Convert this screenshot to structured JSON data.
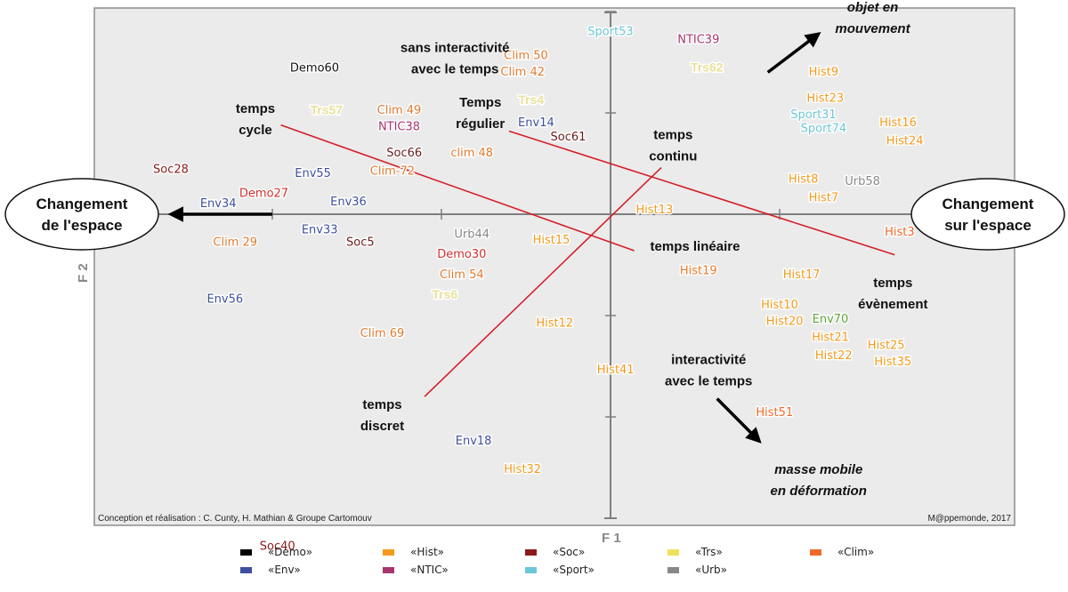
{
  "chart_data": {
    "type": "scatter",
    "title": "",
    "xlabel": "F 1",
    "ylabel": "F 2",
    "xlim": [
      -3.2,
      1.8
    ],
    "ylim": [
      -1.85,
      1.25
    ],
    "grid": false,
    "legend_placement": "bottom",
    "categories": [
      {
        "key": "Demo",
        "label": "«Demo»",
        "color": "#000000"
      },
      {
        "key": "Hist",
        "label": "«Hist»",
        "color": "#f39a1e"
      },
      {
        "key": "Soc",
        "label": "«Soc»",
        "color": "#8b1a1a"
      },
      {
        "key": "Trs",
        "label": "«Trs»",
        "color": "#ede15b"
      },
      {
        "key": "Clim",
        "label": "«Clim»",
        "color": "#ee6a2a"
      },
      {
        "key": "Env",
        "label": "«Env»",
        "color": "#3e4f9e"
      },
      {
        "key": "NTIC",
        "label": "«NTIC»",
        "color": "#a8356f"
      },
      {
        "key": "Sport",
        "label": "«Sport»",
        "color": "#6cc6d6"
      },
      {
        "key": "Urb",
        "label": "«Urb»",
        "color": "#888888"
      }
    ],
    "points": [
      {
        "label": "Demo60",
        "cat": "Demo",
        "color": "#111111",
        "x": -1.75,
        "y": 0.72
      },
      {
        "label": "Demo27",
        "cat": "Demo",
        "color": "#d0312d",
        "x": -2.05,
        "y": 0.1
      },
      {
        "label": "Demo30",
        "cat": "Demo",
        "color": "#d0312d",
        "x": -0.88,
        "y": -0.2
      },
      {
        "label": "Soc28",
        "cat": "Soc",
        "color": "#8b1a1a",
        "x": -2.6,
        "y": 0.22
      },
      {
        "label": "Soc66",
        "cat": "Soc",
        "color": "#6b1a1a",
        "x": -1.22,
        "y": 0.3
      },
      {
        "label": "Soc61",
        "cat": "Soc",
        "color": "#6b1a1a",
        "x": -0.25,
        "y": 0.38
      },
      {
        "label": "Soc5",
        "cat": "Soc",
        "color": "#6b1a1a",
        "x": -1.48,
        "y": -0.14
      },
      {
        "label": "Soc40",
        "cat": "Soc",
        "color": "#8b1a1a",
        "x": -1.97,
        "y": -1.64
      },
      {
        "label": "Clim 50",
        "cat": "Clim",
        "color": "#e07a30",
        "x": -0.5,
        "y": 0.78
      },
      {
        "label": "Clim 42",
        "cat": "Clim",
        "color": "#e07a30",
        "x": -0.52,
        "y": 0.7
      },
      {
        "label": "Clim 49",
        "cat": "Clim",
        "color": "#e07a30",
        "x": -1.25,
        "y": 0.51
      },
      {
        "label": "clim 48",
        "cat": "Clim",
        "color": "#e07a30",
        "x": -0.82,
        "y": 0.3
      },
      {
        "label": "Clim-72",
        "cat": "Clim",
        "color": "#e07a30",
        "x": -1.29,
        "y": 0.21
      },
      {
        "label": "Clim 29",
        "cat": "Clim",
        "color": "#e07a30",
        "x": -2.22,
        "y": -0.14
      },
      {
        "label": "Clim 54",
        "cat": "Clim",
        "color": "#e07a30",
        "x": -0.88,
        "y": -0.3
      },
      {
        "label": "Clim 69",
        "cat": "Clim",
        "color": "#e07a30",
        "x": -1.35,
        "y": -0.59
      },
      {
        "label": "Trs57",
        "cat": "Trs",
        "color": "#ede15b",
        "x": -1.68,
        "y": 0.51
      },
      {
        "label": "Trs4",
        "cat": "Trs",
        "color": "#ede15b",
        "x": -0.47,
        "y": 0.56
      },
      {
        "label": "Trs62",
        "cat": "Trs",
        "color": "#ede15b",
        "x": 0.57,
        "y": 0.72
      },
      {
        "label": "Trs6",
        "cat": "Trs",
        "color": "#ede15b",
        "x": -0.98,
        "y": -0.4
      },
      {
        "label": "NTIC38",
        "cat": "NTIC",
        "color": "#a8356f",
        "x": -1.25,
        "y": 0.43
      },
      {
        "label": "NTIC39",
        "cat": "NTIC",
        "color": "#a8356f",
        "x": 0.52,
        "y": 0.86
      },
      {
        "label": "Env14",
        "cat": "Env",
        "color": "#3e4f9e",
        "x": -0.44,
        "y": 0.45
      },
      {
        "label": "Env55",
        "cat": "Env",
        "color": "#3e4f9e",
        "x": -1.76,
        "y": 0.2
      },
      {
        "label": "Env34",
        "cat": "Env",
        "color": "#3e4f9e",
        "x": -2.32,
        "y": 0.05
      },
      {
        "label": "Env36",
        "cat": "Env",
        "color": "#3e4f9e",
        "x": -1.55,
        "y": 0.06
      },
      {
        "label": "Env33",
        "cat": "Env",
        "color": "#3e4f9e",
        "x": -1.72,
        "y": -0.08
      },
      {
        "label": "Env56",
        "cat": "Env",
        "color": "#3e4f9e",
        "x": -2.28,
        "y": -0.42
      },
      {
        "label": "Env18",
        "cat": "Env",
        "color": "#3e4f9e",
        "x": -0.81,
        "y": -1.12
      },
      {
        "label": "Env70",
        "cat": "Env",
        "color": "#5ea33a",
        "x": 1.3,
        "y": -0.52
      },
      {
        "label": "Sport53",
        "cat": "Sport",
        "color": "#6cc6d6",
        "x": 0.0,
        "y": 0.9
      },
      {
        "label": "Sport31",
        "cat": "Sport",
        "color": "#6cc6d6",
        "x": 1.2,
        "y": 0.49
      },
      {
        "label": "Sport74",
        "cat": "Sport",
        "color": "#6cc6d6",
        "x": 1.26,
        "y": 0.42
      },
      {
        "label": "Urb44",
        "cat": "Urb",
        "color": "#888888",
        "x": -0.82,
        "y": -0.1
      },
      {
        "label": "Urb58",
        "cat": "Urb",
        "color": "#888888",
        "x": 1.49,
        "y": 0.16
      },
      {
        "label": "Hist9",
        "cat": "Hist",
        "color": "#f39a1e",
        "x": 1.26,
        "y": 0.7
      },
      {
        "label": "Hist23",
        "cat": "Hist",
        "color": "#f39a1e",
        "x": 1.27,
        "y": 0.57
      },
      {
        "label": "Hist16",
        "cat": "Hist",
        "color": "#f39a1e",
        "x": 1.7,
        "y": 0.45
      },
      {
        "label": "Hist24",
        "cat": "Hist",
        "color": "#f39a1e",
        "x": 1.74,
        "y": 0.36
      },
      {
        "label": "Hist8",
        "cat": "Hist",
        "color": "#f39a1e",
        "x": 1.14,
        "y": 0.17
      },
      {
        "label": "Hist7",
        "cat": "Hist",
        "color": "#f39a1e",
        "x": 1.26,
        "y": 0.08
      },
      {
        "label": "Hist13",
        "cat": "Hist",
        "color": "#f39a1e",
        "x": 0.26,
        "y": 0.02
      },
      {
        "label": "Hist3",
        "cat": "Hist",
        "color": "#ee6a2a",
        "x": 1.71,
        "y": -0.09
      },
      {
        "label": "Hist15",
        "cat": "Hist",
        "color": "#f39a1e",
        "x": -0.35,
        "y": -0.13
      },
      {
        "label": "Hist19",
        "cat": "Hist",
        "color": "#ee7a2a",
        "x": 0.52,
        "y": -0.28
      },
      {
        "label": "Hist17",
        "cat": "Hist",
        "color": "#f39a1e",
        "x": 1.13,
        "y": -0.3
      },
      {
        "label": "Hist10",
        "cat": "Hist",
        "color": "#f39a1e",
        "x": 1.0,
        "y": -0.45
      },
      {
        "label": "Hist20",
        "cat": "Hist",
        "color": "#f39a1e",
        "x": 1.03,
        "y": -0.53
      },
      {
        "label": "Hist21",
        "cat": "Hist",
        "color": "#f39a1e",
        "x": 1.3,
        "y": -0.61
      },
      {
        "label": "Hist22",
        "cat": "Hist",
        "color": "#f39a1e",
        "x": 1.32,
        "y": -0.7
      },
      {
        "label": "Hist25",
        "cat": "Hist",
        "color": "#f39a1e",
        "x": 1.63,
        "y": -0.65
      },
      {
        "label": "Hist35",
        "cat": "Hist",
        "color": "#f39a1e",
        "x": 1.67,
        "y": -0.73
      },
      {
        "label": "Hist12",
        "cat": "Hist",
        "color": "#f39a1e",
        "x": -0.33,
        "y": -0.54
      },
      {
        "label": "Hist41",
        "cat": "Hist",
        "color": "#f39a1e",
        "x": 0.03,
        "y": -0.77
      },
      {
        "label": "Hist51",
        "cat": "Hist",
        "color": "#ee6a2a",
        "x": 0.97,
        "y": -0.98
      },
      {
        "label": "Hist32",
        "cat": "Hist",
        "color": "#f39a1e",
        "x": -0.52,
        "y": -1.26
      }
    ],
    "annotations": [
      {
        "lines": [
          "sans interactivité",
          "avec le temps"
        ],
        "style": "bold",
        "x": -0.92,
        "y": 0.8
      },
      {
        "lines": [
          "temps",
          "cycle"
        ],
        "style": "bold",
        "x": -2.1,
        "y": 0.5
      },
      {
        "lines": [
          "Temps",
          "régulier"
        ],
        "style": "bold",
        "x": -0.77,
        "y": 0.53
      },
      {
        "lines": [
          "temps",
          "continu"
        ],
        "style": "bold",
        "x": 0.37,
        "y": 0.37
      },
      {
        "lines": [
          "temps linéaire"
        ],
        "style": "bold",
        "x": 0.5,
        "y": -0.18
      },
      {
        "lines": [
          "temps",
          "évènement"
        ],
        "style": "bold",
        "x": 1.67,
        "y": -0.36
      },
      {
        "lines": [
          "interactivité",
          "avec le temps"
        ],
        "style": "bold",
        "x": 0.58,
        "y": -0.74
      },
      {
        "lines": [
          "temps",
          "discret"
        ],
        "style": "bold",
        "x": -1.35,
        "y": -0.96
      },
      {
        "lines": [
          "objet en",
          "mouvement"
        ],
        "style": "bold-italic",
        "x": 1.55,
        "y": 1.0
      },
      {
        "lines": [
          "masse mobile",
          "en déformation"
        ],
        "style": "bold-italic",
        "x": 1.23,
        "y": -1.28
      }
    ],
    "trend_lines": [
      {
        "name": "cycle-lineaire",
        "from": [
          -1.95,
          0.44
        ],
        "to": [
          0.14,
          -0.18
        ]
      },
      {
        "name": "regulier-evenement",
        "from": [
          -0.6,
          0.41
        ],
        "to": [
          1.68,
          -0.2
        ]
      },
      {
        "name": "discret-continu",
        "from": [
          -1.1,
          -0.9
        ],
        "to": [
          0.3,
          0.23
        ]
      }
    ],
    "arrows": [
      {
        "name": "arrow-objet-en-mouvement",
        "from": [
          0.93,
          0.7
        ],
        "to": [
          1.23,
          0.89
        ]
      },
      {
        "name": "arrow-masse-mobile",
        "from": [
          0.63,
          -0.91
        ],
        "to": [
          0.88,
          -1.12
        ]
      },
      {
        "name": "arrow-changement-espace",
        "from": [
          -2.0,
          0.0
        ],
        "to": [
          -2.6,
          0.0
        ]
      }
    ],
    "poles": [
      {
        "lines": [
          "Changement",
          "de l'espace"
        ],
        "side": "left"
      },
      {
        "lines": [
          "Changement",
          "sur l'espace"
        ],
        "side": "right"
      }
    ],
    "x_ticks": [
      -2.0,
      -1.0,
      1.0
    ],
    "y_ticks": [
      1.0,
      0.5,
      -0.5,
      -1.0
    ]
  },
  "credits": {
    "left": "Conception et réalisation : C. Cunty, H. Mathian & Groupe Cartomouv",
    "right": "M@ppemonde, 2017"
  }
}
